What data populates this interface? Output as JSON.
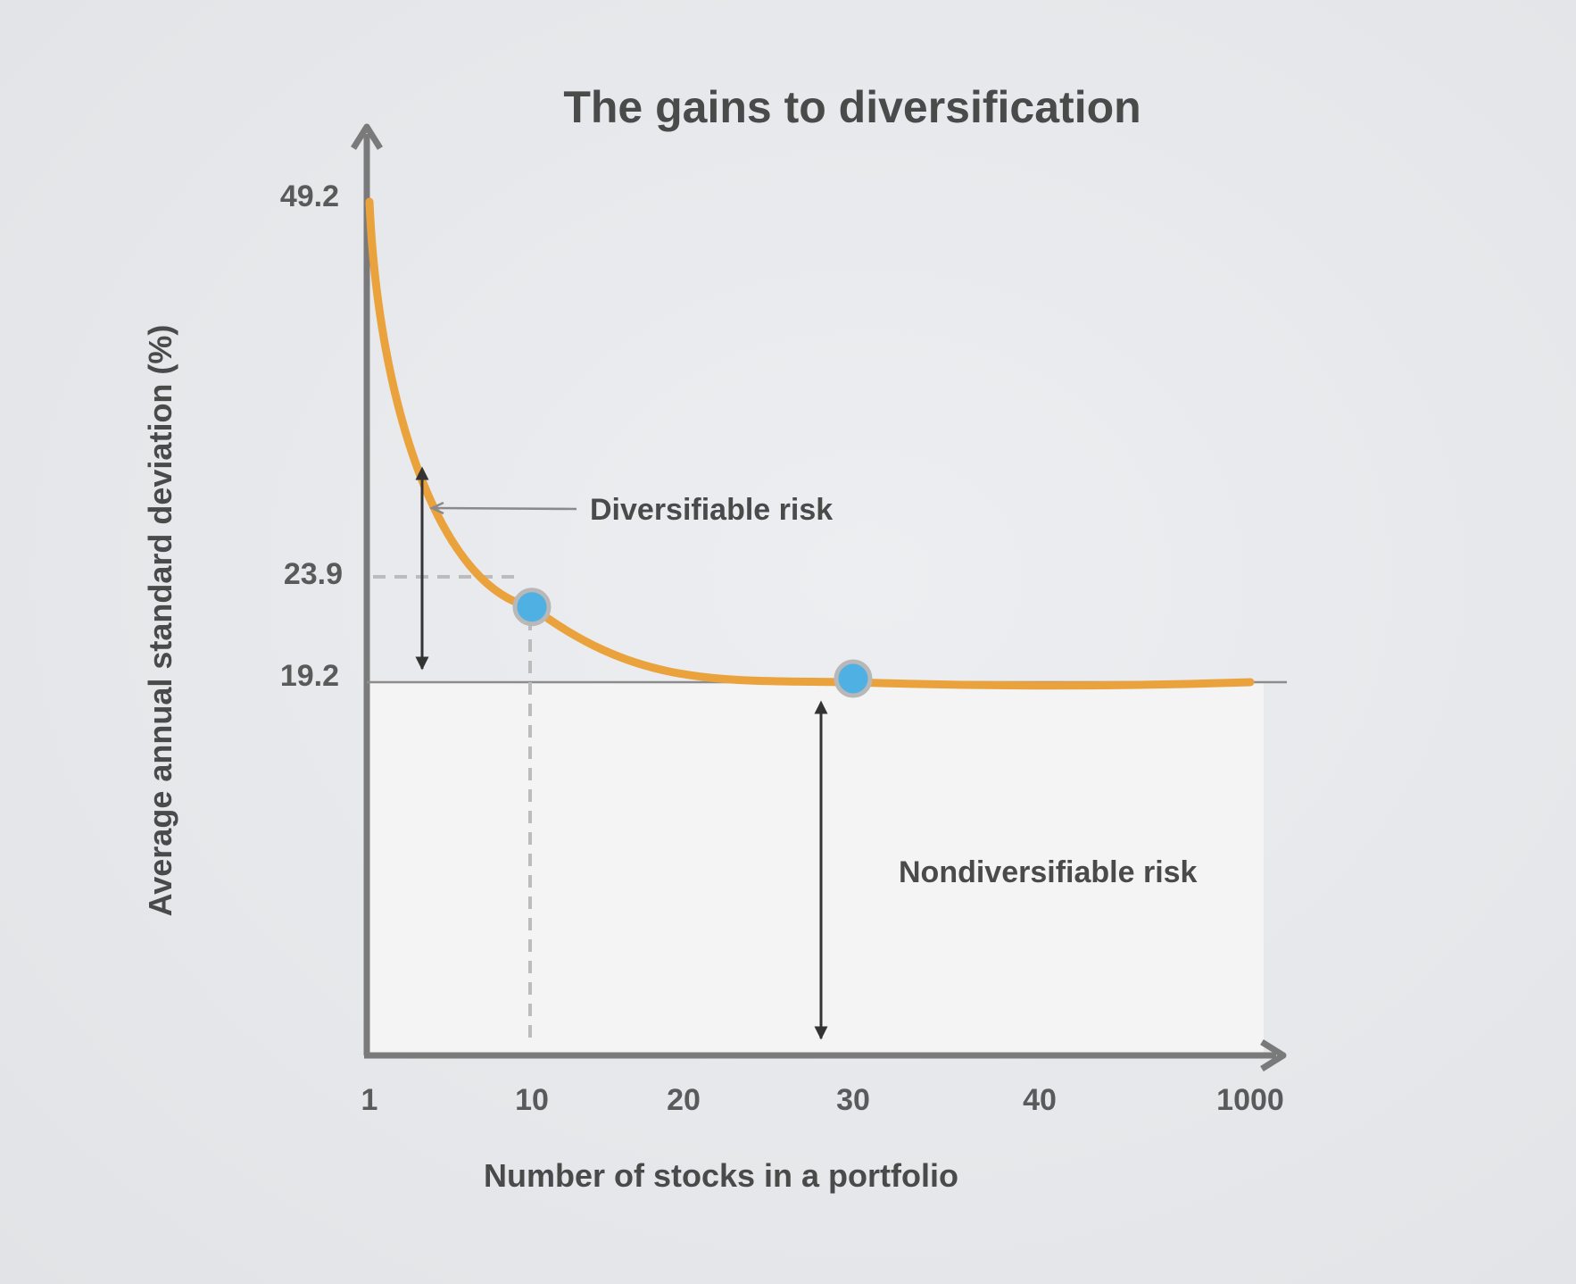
{
  "chart_data": {
    "type": "line",
    "title": "The gains to diversification",
    "xlabel": "Number of stocks in a portfolio",
    "ylabel": "Average annual standard deviation (%)",
    "x_ticks": [
      "1",
      "10",
      "20",
      "30",
      "40",
      "1000"
    ],
    "y_ticks": [
      "49.2",
      "23.9",
      "19.2"
    ],
    "asymptote": 19.2,
    "series": [
      {
        "color": "#eaa23c",
        "points": [
          {
            "x": "1",
            "y": 49.2
          },
          {
            "x": "10",
            "y": 23.9
          },
          {
            "x": "30",
            "y": 19.2
          },
          {
            "x": "1000",
            "y": 19.2
          }
        ]
      }
    ],
    "highlighted_points": [
      {
        "x": "10",
        "y": 23.9
      },
      {
        "x": "30",
        "y": 19.2
      }
    ],
    "annotations": {
      "diversifiable": "Diversifiable risk",
      "nondiversifiable": "Nondiversifiable risk"
    },
    "colors": {
      "curve": "#eaa23c",
      "marker": "#4fb0e3",
      "marker_ring": "#b8b8b8",
      "axis": "#7a7a7a",
      "region": "#f4f4f4"
    }
  }
}
